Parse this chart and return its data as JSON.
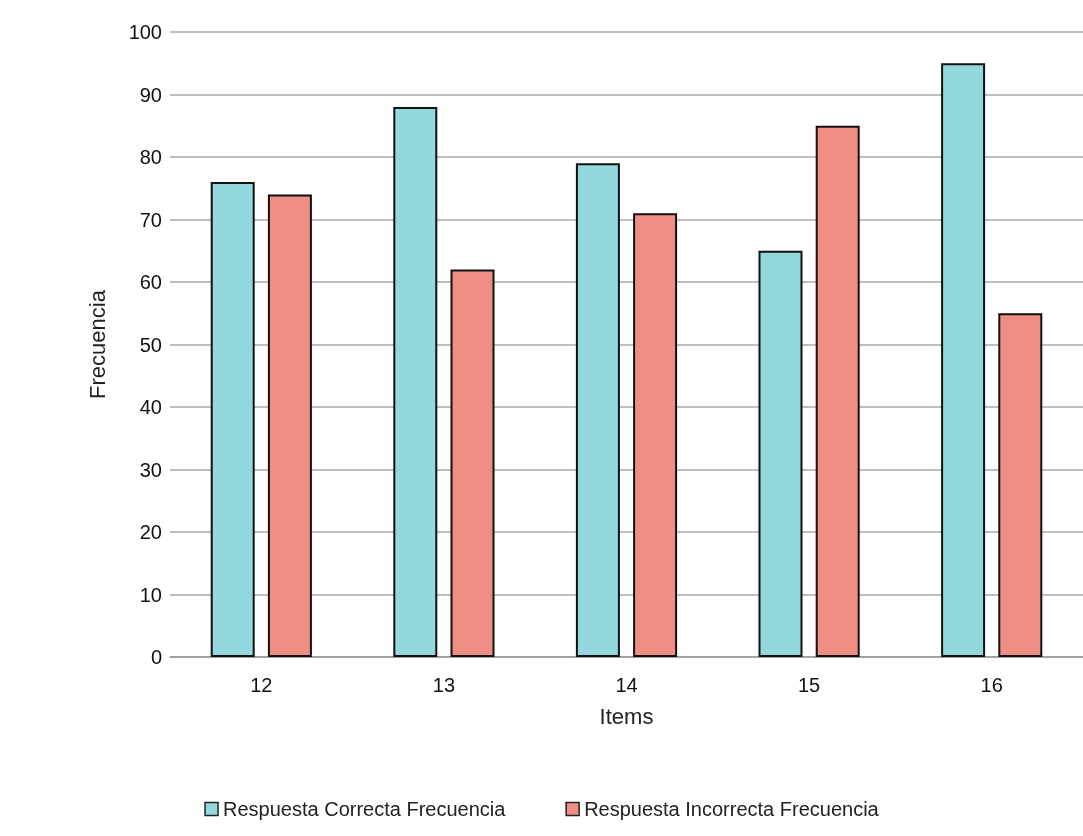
{
  "chart_data": {
    "type": "bar",
    "xlabel": "Items",
    "ylabel": "Frecuencia",
    "categories": [
      "12",
      "13",
      "14",
      "15",
      "16"
    ],
    "series": [
      {
        "name": "Respuesta Correcta Frecuencia",
        "color": "#92d8dc",
        "values": [
          76,
          88,
          79,
          65,
          95
        ]
      },
      {
        "name": "Respuesta Incorrecta Frecuencia",
        "color": "#f08e84",
        "values": [
          74,
          62,
          71,
          85,
          55
        ]
      }
    ],
    "ylim": [
      0,
      100
    ],
    "yticks": [
      0,
      10,
      20,
      30,
      40,
      50,
      60,
      70,
      80,
      90,
      100
    ],
    "grid": "y",
    "legend": "bottom"
  }
}
